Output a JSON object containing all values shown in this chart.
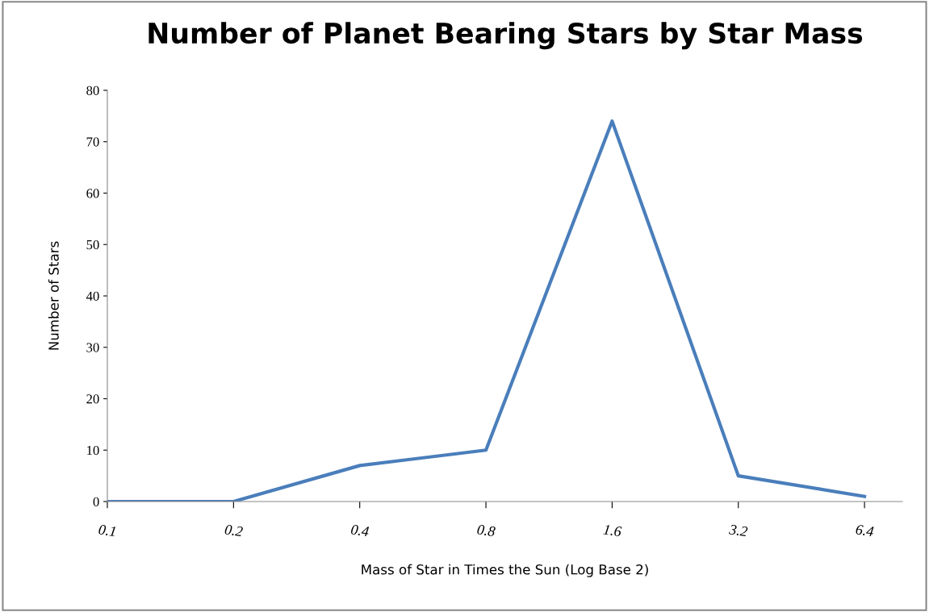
{
  "chart_data": {
    "type": "line",
    "title": "Number of Planet Bearing Stars by Star Mass",
    "xlabel": "Mass of Star in Times the Sun (Log Base 2)",
    "ylabel": "Number of Stars",
    "categories": [
      "0.1",
      "0.2",
      "0.4",
      "0.8",
      "1.6",
      "3.2",
      "6.4"
    ],
    "series": [
      {
        "color": "#4a7ebb",
        "values": [
          0,
          0,
          7,
          10,
          74,
          5,
          1
        ]
      }
    ],
    "ylim": [
      0,
      80
    ],
    "yticks": [
      0,
      10,
      20,
      30,
      40,
      50,
      60,
      70,
      80
    ],
    "grid": false,
    "legend": false,
    "marker": "none",
    "line_style": "solid"
  }
}
